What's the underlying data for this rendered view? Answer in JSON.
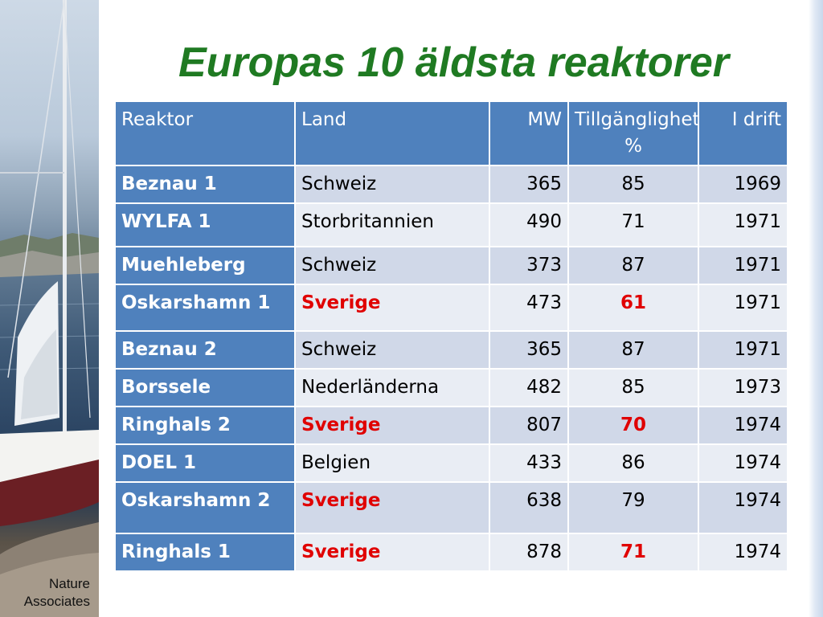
{
  "slide": {
    "title": "Europas 10 äldsta reaktorer",
    "logo_line1": "Nature",
    "logo_line2": "Associates",
    "title_color": "#1f7a22",
    "header_color": "#4f81bd",
    "highlight_color": "#e00000"
  },
  "table": {
    "headers": [
      "Reaktor",
      "Land",
      "MW",
      "Tillgänglighet %",
      "I drift"
    ],
    "rows": [
      {
        "reaktor": "Beznau 1",
        "land": "Schweiz",
        "mw": "365",
        "tillganglighet": "85",
        "i_drift": "1969"
      },
      {
        "reaktor": "WYLFA 1",
        "land": "Storbritannien",
        "mw": "490",
        "tillganglighet": "71",
        "i_drift": "1971"
      },
      {
        "reaktor": "Muehleberg",
        "land": "Schweiz",
        "mw": "373",
        "tillganglighet": "87",
        "i_drift": "1971"
      },
      {
        "reaktor": "Oskarshamn 1",
        "land": "Sverige",
        "mw": "473",
        "tillganglighet": "61",
        "i_drift": "1971"
      },
      {
        "reaktor": "Beznau 2",
        "land": "Schweiz",
        "mw": "365",
        "tillganglighet": "87",
        "i_drift": "1971"
      },
      {
        "reaktor": "Borssele",
        "land": "Nederländerna",
        "mw": "482",
        "tillganglighet": "85",
        "i_drift": "1973"
      },
      {
        "reaktor": "Ringhals 2",
        "land": "Sverige",
        "mw": "807",
        "tillganglighet": "70",
        "i_drift": "1974"
      },
      {
        "reaktor": "DOEL 1",
        "land": "Belgien",
        "mw": "433",
        "tillganglighet": "86",
        "i_drift": "1974"
      },
      {
        "reaktor": "Oskarshamn 2",
        "land": "Sverige",
        "mw": "638",
        "tillganglighet": "79",
        "i_drift": "1974"
      },
      {
        "reaktor": "Ringhals 1",
        "land": "Sverige",
        "mw": "878",
        "tillganglighet": "71",
        "i_drift": "1974"
      }
    ]
  }
}
